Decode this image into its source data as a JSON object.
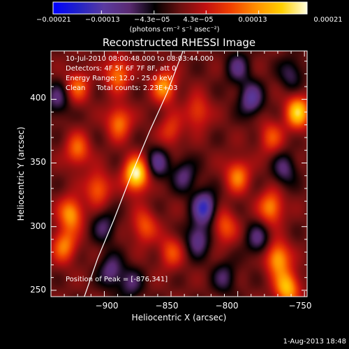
{
  "chart_data": {
    "type": "heatmap",
    "title": "Reconstructed RHESSI Image",
    "xlabel": "Heliocentric X (arcsec)",
    "ylabel": "Heliocentric Y (arcsec)",
    "xlim": [
      -940,
      -748
    ],
    "ylim": [
      245,
      438
    ],
    "x_ticks": [
      -900,
      -850,
      -800,
      -750
    ],
    "y_ticks": [
      250,
      300,
      350,
      400
    ],
    "x_tick_labels": [
      "−900",
      "−850",
      "−800",
      "−750"
    ],
    "y_tick_labels": [
      "250",
      "300",
      "350",
      "400"
    ],
    "colorbar": {
      "unit": "(photons cm⁻² s⁻¹ asec⁻²)",
      "range": [
        -0.00021,
        0.00021
      ],
      "ticks": [
        -0.00021,
        -0.00013,
        -4.3e-05,
        4.3e-05,
        0.00013,
        0.00021
      ],
      "tick_labels": [
        "−0.00021",
        "−0.00013",
        "−4.3e−05",
        "4.3e−05",
        "0.00013",
        "0.00021"
      ]
    },
    "annotations": [
      "10-Jul-2010 08:00:48.000 to 08:03:44.000",
      "Detectors: 4F 5F 6F 7F 8F, att 0",
      "Energy Range: 12.0 - 25.0 keV",
      "Clean     Total counts: 2.23E+03",
      "Position of Peak = [-876,341]"
    ],
    "peak": {
      "x": -876,
      "y": 341
    },
    "sources": [
      {
        "x": -876,
        "y": 341,
        "v": 1.0
      },
      {
        "x": -889,
        "y": 382,
        "v": 0.55
      },
      {
        "x": -920,
        "y": 360,
        "v": 0.5
      },
      {
        "x": -905,
        "y": 330,
        "v": 0.5
      },
      {
        "x": -855,
        "y": 410,
        "v": 0.6
      },
      {
        "x": -830,
        "y": 390,
        "v": 0.4
      },
      {
        "x": -850,
        "y": 375,
        "v": 0.35
      },
      {
        "x": -925,
        "y": 310,
        "v": 0.65
      },
      {
        "x": -930,
        "y": 285,
        "v": 0.55
      },
      {
        "x": -870,
        "y": 300,
        "v": 0.45
      },
      {
        "x": -850,
        "y": 280,
        "v": 0.4
      },
      {
        "x": -800,
        "y": 340,
        "v": 0.55
      },
      {
        "x": -810,
        "y": 300,
        "v": 0.45
      },
      {
        "x": -775,
        "y": 315,
        "v": 0.6
      },
      {
        "x": -770,
        "y": 275,
        "v": 0.7
      },
      {
        "x": -763,
        "y": 252,
        "v": 0.75
      },
      {
        "x": -755,
        "y": 390,
        "v": 0.8
      },
      {
        "x": -775,
        "y": 370,
        "v": 0.4
      },
      {
        "x": -890,
        "y": 420,
        "v": 0.55
      },
      {
        "x": -920,
        "y": 410,
        "v": 0.45
      },
      {
        "x": -860,
        "y": 350,
        "v": -0.45
      },
      {
        "x": -840,
        "y": 340,
        "v": -0.4
      },
      {
        "x": -825,
        "y": 315,
        "v": -0.7
      },
      {
        "x": -830,
        "y": 290,
        "v": -0.5
      },
      {
        "x": -790,
        "y": 400,
        "v": -0.55
      },
      {
        "x": -800,
        "y": 425,
        "v": -0.4
      },
      {
        "x": -760,
        "y": 420,
        "v": -0.35
      },
      {
        "x": -785,
        "y": 290,
        "v": -0.4
      },
      {
        "x": -895,
        "y": 265,
        "v": -0.45
      },
      {
        "x": -880,
        "y": 255,
        "v": -0.35
      },
      {
        "x": -935,
        "y": 400,
        "v": -0.4
      },
      {
        "x": -900,
        "y": 300,
        "v": -0.35
      },
      {
        "x": -765,
        "y": 345,
        "v": -0.4
      },
      {
        "x": -810,
        "y": 260,
        "v": -0.35
      }
    ],
    "limb_curve": [
      {
        "x": -915,
        "y": 245
      },
      {
        "x": -905,
        "y": 275
      },
      {
        "x": -893,
        "y": 305
      },
      {
        "x": -880,
        "y": 340
      },
      {
        "x": -866,
        "y": 375
      },
      {
        "x": -853,
        "y": 405
      },
      {
        "x": -841,
        "y": 438
      }
    ],
    "colormap": [
      "#0000ff",
      "#2222c8",
      "#5a3aa0",
      "#5a2a72",
      "#000000",
      "#6a1010",
      "#c01010",
      "#f04000",
      "#ff9000",
      "#ffd000",
      "#ffffe0"
    ]
  },
  "footer": {
    "date": "1-Aug-2013 18:48"
  }
}
